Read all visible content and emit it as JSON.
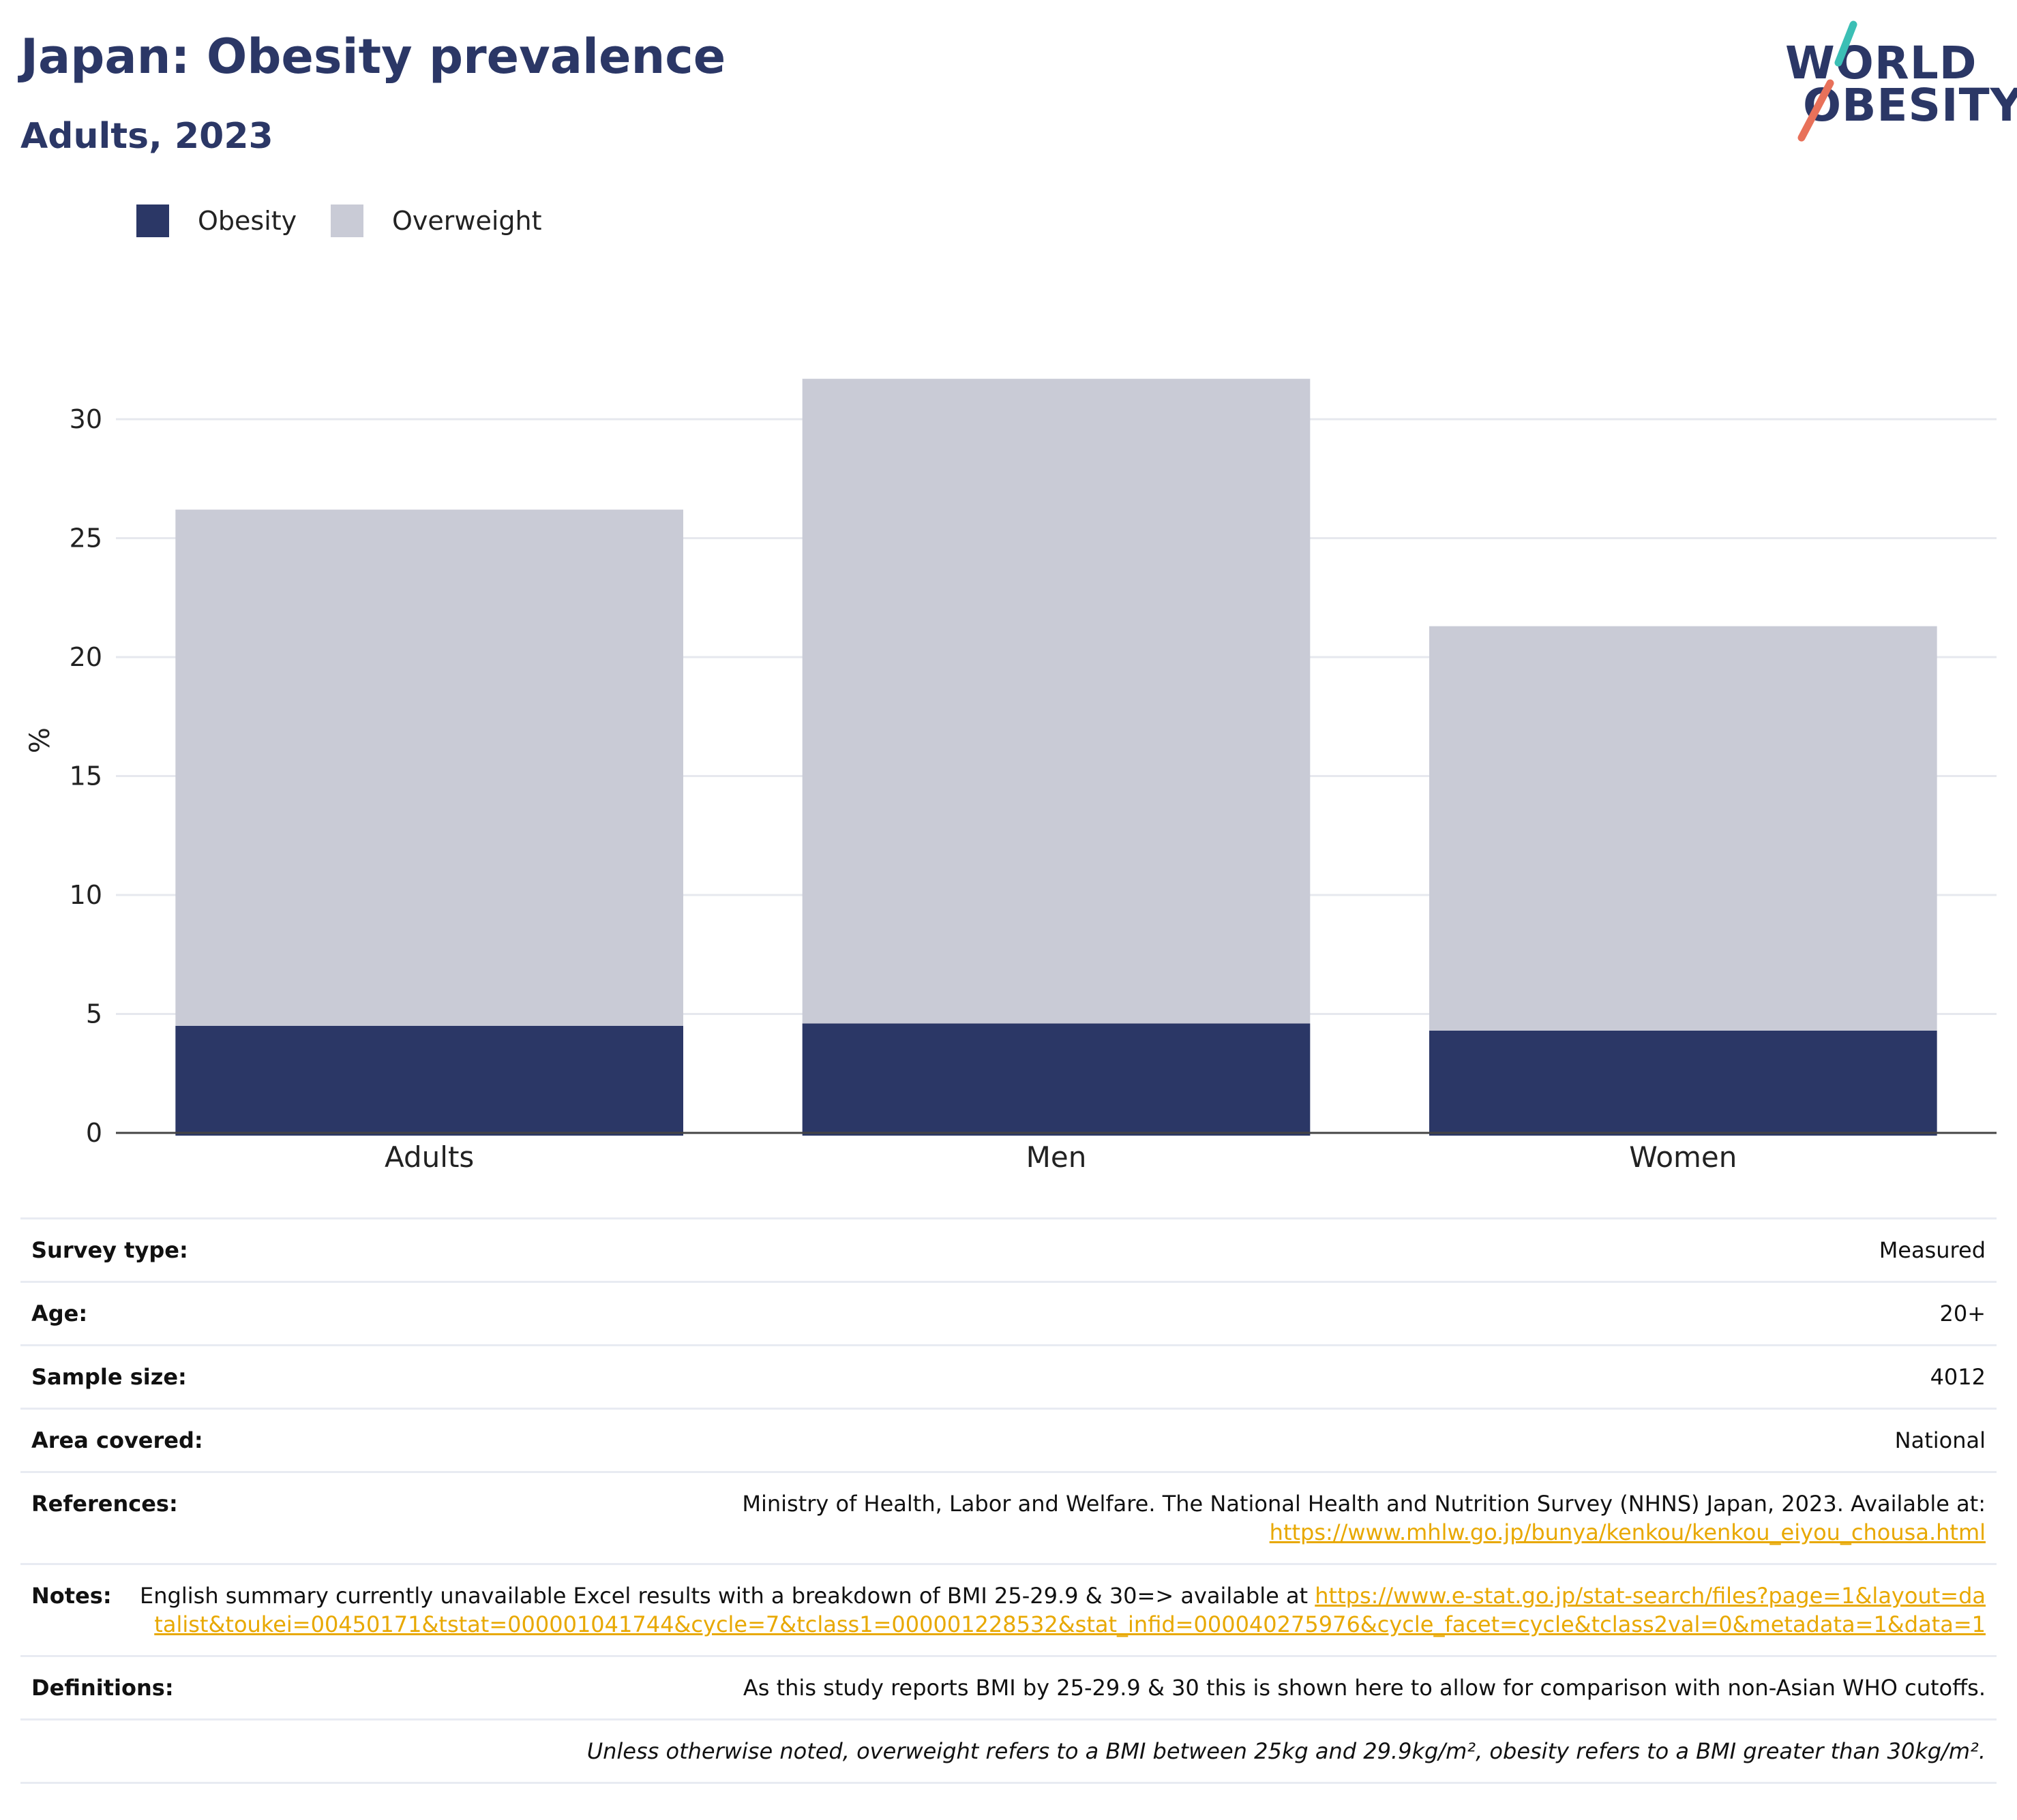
{
  "header": {
    "title": "Japan: Obesity prevalence",
    "subtitle": "Adults, 2023"
  },
  "logo": {
    "line1": "WORLD",
    "line2": "OBESITY",
    "slash_colors": [
      "#3bbfb5",
      "#e8715a"
    ]
  },
  "legend": {
    "items": [
      {
        "label": "Obesity",
        "color": "#2b3766"
      },
      {
        "label": "Overweight",
        "color": "#c9cbd6"
      }
    ]
  },
  "chart_data": {
    "type": "bar",
    "stacked": true,
    "categories": [
      "Adults",
      "Men",
      "Women"
    ],
    "series": [
      {
        "name": "Obesity",
        "color": "#2b3766",
        "values": [
          4.5,
          4.6,
          4.3
        ]
      },
      {
        "name": "Overweight",
        "color": "#c9cbd6",
        "values": [
          21.7,
          27.1,
          17.0
        ]
      }
    ],
    "ylabel": "%",
    "yticks": [
      0,
      5,
      10,
      15,
      20,
      25,
      30
    ],
    "ylim": [
      0,
      33
    ],
    "grid": true
  },
  "info": {
    "survey_type": {
      "label": "Survey type:",
      "value": "Measured"
    },
    "age": {
      "label": "Age:",
      "value": "20+"
    },
    "sample_size": {
      "label": "Sample size:",
      "value": "4012"
    },
    "area": {
      "label": "Area covered:",
      "value": "National"
    },
    "references": {
      "label": "References:",
      "text": "Ministry of Health, Labor and Welfare. The National Health and Nutrition Survey (NHNS) Japan, 2023. Available at:",
      "link": "https://www.mhlw.go.jp/bunya/kenkou/kenkou_eiyou_chousa.html"
    },
    "notes": {
      "label": "Notes:",
      "text": "English summary currently unavailable Excel results with a breakdown of BMI 25-29.9 & 30=> available at",
      "link": "https://www.e-stat.go.jp/stat-search/files?page=1&layout=datalist&toukei=00450171&tstat=000001041744&cycle=7&tclass1=000001228532&stat_infid=000040275976&cycle_facet=cycle&tclass2val=0&metadata=1&data=1"
    },
    "definitions": {
      "label": "Definitions:",
      "value": "As this study reports BMI by 25-29.9 & 30 this is shown here to allow for comparison with non-Asian WHO cutoffs."
    },
    "footnote": "Unless otherwise noted, overweight refers to a BMI between 25kg and 29.9kg/m², obesity refers to a BMI greater than 30kg/m²."
  }
}
